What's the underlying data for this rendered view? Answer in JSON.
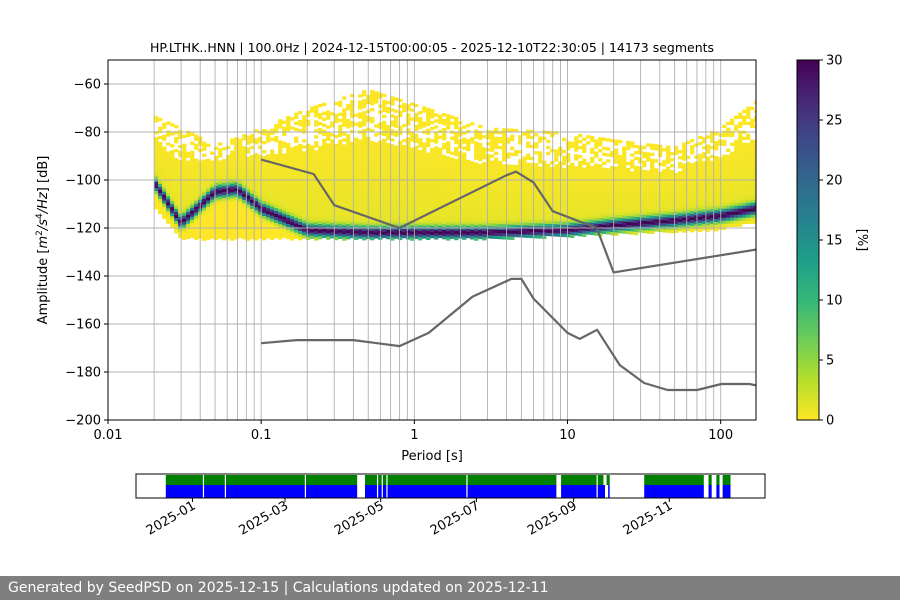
{
  "chart_data": [
    {
      "type": "heatmap",
      "title": "HP.LTHK..HNN | 100.0Hz | 2024-12-15T00:00:05 - 2025-12-10T22:30:05 | 14173 segments",
      "xlabel": "Period [s]",
      "ylabel_parts": [
        "Amplitude [",
        "m",
        "2",
        "/",
        "s",
        "4",
        "/",
        "Hz",
        "] [dB]"
      ],
      "x_scale": "log",
      "xlim": [
        0.01,
        170
      ],
      "ylim": [
        -200,
        -50
      ],
      "x_ticks": [
        {
          "value": 0.01,
          "label": "0.01"
        },
        {
          "value": 0.1,
          "label": "0.1"
        },
        {
          "value": 1,
          "label": "1"
        },
        {
          "value": 10,
          "label": "10"
        },
        {
          "value": 100,
          "label": "100"
        }
      ],
      "y_ticks": [
        {
          "value": -60,
          "label": "−60"
        },
        {
          "value": -80,
          "label": "−80"
        },
        {
          "value": -100,
          "label": "−100"
        },
        {
          "value": -120,
          "label": "−120"
        },
        {
          "value": -140,
          "label": "−140"
        },
        {
          "value": -160,
          "label": "−160"
        },
        {
          "value": -180,
          "label": "−180"
        },
        {
          "value": -200,
          "label": "−200"
        }
      ],
      "grid_periods": [
        0.02,
        0.03,
        0.04,
        0.05,
        0.06,
        0.07,
        0.08,
        0.09,
        0.1,
        0.2,
        0.3,
        0.4,
        0.5,
        0.6,
        0.7,
        0.8,
        0.9,
        1,
        2,
        3,
        4,
        5,
        6,
        7,
        8,
        9,
        10,
        20,
        30,
        40,
        50,
        60,
        70,
        80,
        90,
        100
      ],
      "colorbar": {
        "label": "[%]",
        "range": [
          0,
          30
        ],
        "ticks": [
          "0",
          "5",
          "10",
          "15",
          "20",
          "25",
          "30"
        ],
        "colormap": "viridis_r",
        "colors": [
          "#fde725",
          "#b5de2b",
          "#6ece58",
          "#35b779",
          "#1f9e89",
          "#26828e",
          "#31688e",
          "#3e4989",
          "#482878",
          "#440154"
        ]
      },
      "psd_density": {
        "period_range": [
          0.02,
          170
        ],
        "columns": [
          {
            "period": 0.02,
            "noise_db": -101,
            "upper_edge_db": -73,
            "lower_edge_db": -110
          },
          {
            "period": 0.03,
            "noise_db": -118,
            "upper_edge_db": -78,
            "lower_edge_db": -124
          },
          {
            "period": 0.05,
            "noise_db": -105,
            "upper_edge_db": -85,
            "lower_edge_db": -124
          },
          {
            "period": 0.07,
            "noise_db": -104,
            "upper_edge_db": -82,
            "lower_edge_db": -124
          },
          {
            "period": 0.1,
            "noise_db": -112,
            "upper_edge_db": -78,
            "lower_edge_db": -124
          },
          {
            "period": 0.2,
            "noise_db": -121,
            "upper_edge_db": -70,
            "lower_edge_db": -124
          },
          {
            "period": 0.5,
            "noise_db": -122,
            "upper_edge_db": -62,
            "lower_edge_db": -124
          },
          {
            "period": 1,
            "noise_db": -122,
            "upper_edge_db": -68,
            "lower_edge_db": -124
          },
          {
            "period": 3,
            "noise_db": -122,
            "upper_edge_db": -78,
            "lower_edge_db": -124
          },
          {
            "period": 10,
            "noise_db": -121,
            "upper_edge_db": -80,
            "lower_edge_db": -123
          },
          {
            "period": 20,
            "noise_db": -119,
            "upper_edge_db": -83,
            "lower_edge_db": -122
          },
          {
            "period": 50,
            "noise_db": -117,
            "upper_edge_db": -86,
            "lower_edge_db": -121
          },
          {
            "period": 100,
            "noise_db": -115,
            "upper_edge_db": -78,
            "lower_edge_db": -120
          },
          {
            "period": 170,
            "noise_db": -112,
            "upper_edge_db": -67,
            "lower_edge_db": -117
          }
        ]
      },
      "series": [
        {
          "values": [
            [
              0.1,
              -91.5
            ],
            [
              0.22,
              -97.5
            ],
            [
              0.3,
              -110.5
            ],
            [
              0.8,
              -120
            ],
            [
              4,
              -98
            ],
            [
              4.6,
              -96.5
            ],
            [
              6,
              -101
            ],
            [
              8,
              -113
            ],
            [
              15.5,
              -120
            ],
            [
              20,
              -138.5
            ],
            [
              170,
              -129
            ]
          ]
        },
        {
          "values": [
            [
              0.1,
              -168
            ],
            [
              0.17,
              -166.7
            ],
            [
              0.4,
              -166.7
            ],
            [
              0.8,
              -169.2
            ],
            [
              1.24,
              -163.7
            ],
            [
              2.4,
              -148.6
            ],
            [
              4.3,
              -141.2
            ],
            [
              5,
              -141.2
            ],
            [
              6,
              -149.4
            ],
            [
              10,
              -163.7
            ],
            [
              12,
              -166.2
            ],
            [
              15.6,
              -162.4
            ],
            [
              21.9,
              -177.1
            ],
            [
              31.6,
              -184.6
            ],
            [
              45,
              -187.5
            ],
            [
              70,
              -187.5
            ],
            [
              101,
              -185
            ],
            [
              154,
              -185
            ],
            [
              170,
              -185.6
            ]
          ]
        }
      ]
    },
    {
      "type": "timeline",
      "x_ticks": [
        "2025-01",
        "2025-03",
        "2025-05",
        "2025-07",
        "2025-09",
        "2025-11"
      ],
      "x_tick_dates": [
        "2025-01-01",
        "2025-03-01",
        "2025-05-01",
        "2025-07-01",
        "2025-09-01",
        "2025-11-01"
      ],
      "xlim": [
        "2024-11-26",
        "2026-01-01"
      ],
      "colors": {
        "processed": "#008000",
        "available": "#0000ff"
      },
      "processed_segments": [
        [
          "2024-12-15",
          "2025-04-16"
        ],
        [
          "2025-04-21",
          "2025-08-21"
        ],
        [
          "2025-08-24",
          "2025-09-20"
        ],
        [
          "2025-09-22",
          "2025-09-24"
        ],
        [
          "2025-10-16",
          "2025-11-23"
        ],
        [
          "2025-11-26",
          "2025-11-28"
        ],
        [
          "2025-12-01",
          "2025-12-03"
        ],
        [
          "2025-12-05",
          "2025-12-10"
        ]
      ],
      "available_segments": [
        [
          "2024-12-15",
          "2025-04-16"
        ],
        [
          "2025-04-21",
          "2025-08-21"
        ],
        [
          "2025-08-24",
          "2025-09-21"
        ],
        [
          "2025-09-23",
          "2025-09-24"
        ],
        [
          "2025-10-16",
          "2025-11-23"
        ],
        [
          "2025-11-26",
          "2025-11-28"
        ],
        [
          "2025-12-01",
          "2025-12-03"
        ],
        [
          "2025-12-05",
          "2025-12-10"
        ]
      ],
      "gap_marks": [
        "2025-01-08",
        "2025-01-22",
        "2025-03-14",
        "2025-04-29",
        "2025-05-02",
        "2025-05-05",
        "2025-06-25",
        "2025-09-16"
      ]
    }
  ],
  "footer": {
    "text": "Generated by SeedPSD on 2025-12-15 | Calculations updated on 2025-12-11"
  }
}
